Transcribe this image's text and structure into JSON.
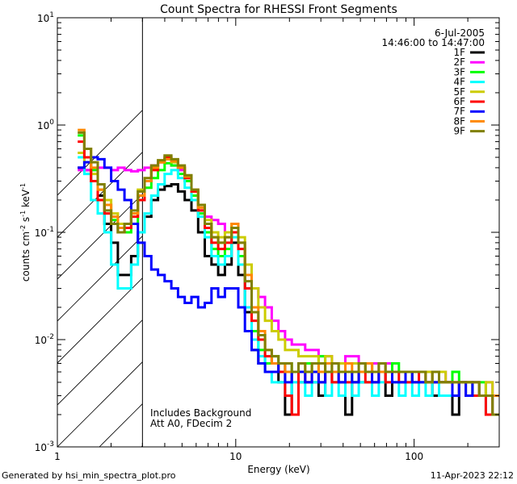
{
  "chart_data": {
    "type": "line",
    "title": "Count Spectra for RHESSI Front Segments",
    "xlabel": "Energy (keV)",
    "ylabel_parts": {
      "a": "counts cm",
      "b": "-2",
      "c": " s",
      "d": "-1",
      "e": " keV",
      "f": "-1"
    },
    "x_scale": "log",
    "y_scale": "log",
    "xlim": [
      1,
      300
    ],
    "ylim": [
      0.001,
      10
    ],
    "x_ticks": [
      {
        "v": 1,
        "label": "1"
      },
      {
        "v": 10,
        "label": "10"
      },
      {
        "v": 100,
        "label": "100"
      }
    ],
    "y_ticks": [
      {
        "v": 10,
        "base": "10",
        "exp": "1"
      },
      {
        "v": 1,
        "base": "10",
        "exp": "0"
      },
      {
        "v": 0.1,
        "base": "10",
        "exp": "-1"
      },
      {
        "v": 0.01,
        "base": "10",
        "exp": "-2"
      },
      {
        "v": 0.001,
        "base": "10",
        "exp": "-3"
      }
    ],
    "hatch_region": [
      1,
      3
    ],
    "legend_position": "top-right",
    "legend_header": [
      "6-Jul-2005",
      "14:46:00 to 14:47:00"
    ],
    "annotations": [
      "Includes Background",
      "Att A0, FDecim 2"
    ],
    "series": [
      {
        "name": "1F",
        "color": "#000000",
        "values": [
          0.4,
          0.38,
          0.3,
          0.22,
          0.12,
          0.08,
          0.04,
          0.04,
          0.06,
          0.1,
          0.14,
          0.2,
          0.25,
          0.27,
          0.28,
          0.24,
          0.2,
          0.16,
          0.1,
          0.06,
          0.05,
          0.04,
          0.05,
          0.08,
          0.04,
          0.018,
          0.008,
          0.006,
          0.005,
          0.005,
          0.004,
          0.002,
          0.005,
          0.004,
          0.004,
          0.004,
          0.003,
          0.005,
          0.004,
          0.004,
          0.002,
          0.004,
          0.004,
          0.004,
          0.004,
          0.005,
          0.003,
          0.004,
          0.004,
          0.005,
          0.004,
          0.004,
          0.004,
          0.003,
          0.004,
          0.004,
          0.002,
          0.004,
          0.004,
          0.003,
          0.003,
          0.003,
          0.003
        ]
      },
      {
        "name": "2F",
        "color": "#ff00ff",
        "values": [
          0.38,
          0.38,
          0.38,
          0.4,
          0.4,
          0.38,
          0.4,
          0.38,
          0.37,
          0.38,
          0.4,
          0.42,
          0.45,
          0.48,
          0.42,
          0.38,
          0.3,
          0.2,
          0.16,
          0.14,
          0.13,
          0.12,
          0.1,
          0.1,
          0.06,
          0.05,
          0.03,
          0.025,
          0.02,
          0.015,
          0.012,
          0.01,
          0.009,
          0.009,
          0.008,
          0.008,
          0.007,
          0.007,
          0.006,
          0.006,
          0.007,
          0.007,
          0.006,
          0.006,
          0.006,
          0.005,
          0.006,
          0.005,
          0.005,
          0.005,
          0.005,
          0.005,
          0.004,
          0.005,
          0.005,
          0.004,
          0.004,
          0.004,
          0.004,
          0.004,
          0.003,
          0.004,
          0.003
        ]
      },
      {
        "name": "3F",
        "color": "#00ff00",
        "values": [
          0.8,
          0.5,
          0.38,
          0.25,
          0.18,
          0.13,
          0.1,
          0.1,
          0.12,
          0.2,
          0.26,
          0.32,
          0.38,
          0.44,
          0.42,
          0.35,
          0.3,
          0.22,
          0.15,
          0.1,
          0.07,
          0.06,
          0.07,
          0.1,
          0.06,
          0.03,
          0.012,
          0.008,
          0.006,
          0.007,
          0.005,
          0.006,
          0.005,
          0.006,
          0.006,
          0.005,
          0.007,
          0.005,
          0.006,
          0.005,
          0.005,
          0.004,
          0.005,
          0.006,
          0.005,
          0.005,
          0.005,
          0.006,
          0.005,
          0.004,
          0.005,
          0.005,
          0.004,
          0.005,
          0.004,
          0.004,
          0.005,
          0.004,
          0.004,
          0.003,
          0.004,
          0.003,
          0.003
        ]
      },
      {
        "name": "4F",
        "color": "#00ffff",
        "values": [
          0.5,
          0.35,
          0.2,
          0.15,
          0.1,
          0.05,
          0.03,
          0.03,
          0.05,
          0.1,
          0.15,
          0.22,
          0.28,
          0.35,
          0.38,
          0.32,
          0.26,
          0.2,
          0.14,
          0.09,
          0.06,
          0.05,
          0.06,
          0.09,
          0.05,
          0.02,
          0.01,
          0.007,
          0.005,
          0.004,
          0.004,
          0.003,
          0.004,
          0.004,
          0.003,
          0.004,
          0.004,
          0.003,
          0.004,
          0.003,
          0.004,
          0.003,
          0.004,
          0.004,
          0.003,
          0.004,
          0.004,
          0.004,
          0.003,
          0.004,
          0.003,
          0.004,
          0.003,
          0.004,
          0.003,
          0.003,
          0.003,
          0.004,
          0.003,
          0.003,
          0.003,
          0.002,
          0.003
        ]
      },
      {
        "name": "5F",
        "color": "#cccc00",
        "values": [
          0.55,
          0.45,
          0.35,
          0.25,
          0.2,
          0.15,
          0.12,
          0.12,
          0.15,
          0.25,
          0.3,
          0.4,
          0.45,
          0.48,
          0.45,
          0.4,
          0.32,
          0.24,
          0.18,
          0.13,
          0.1,
          0.09,
          0.1,
          0.12,
          0.09,
          0.05,
          0.03,
          0.02,
          0.015,
          0.012,
          0.01,
          0.008,
          0.008,
          0.007,
          0.007,
          0.007,
          0.006,
          0.007,
          0.006,
          0.006,
          0.006,
          0.006,
          0.006,
          0.006,
          0.005,
          0.006,
          0.005,
          0.005,
          0.005,
          0.005,
          0.005,
          0.005,
          0.005,
          0.004,
          0.005,
          0.004,
          0.004,
          0.004,
          0.004,
          0.004,
          0.003,
          0.004,
          0.003
        ]
      },
      {
        "name": "6F",
        "color": "#ff0000",
        "values": [
          0.7,
          0.5,
          0.3,
          0.2,
          0.15,
          0.12,
          0.1,
          0.11,
          0.14,
          0.2,
          0.3,
          0.38,
          0.45,
          0.5,
          0.47,
          0.4,
          0.32,
          0.24,
          0.16,
          0.11,
          0.08,
          0.07,
          0.08,
          0.1,
          0.07,
          0.03,
          0.015,
          0.01,
          0.007,
          0.006,
          0.005,
          0.003,
          0.002,
          0.005,
          0.004,
          0.005,
          0.004,
          0.005,
          0.004,
          0.005,
          0.004,
          0.004,
          0.005,
          0.004,
          0.004,
          0.005,
          0.004,
          0.005,
          0.004,
          0.004,
          0.004,
          0.005,
          0.004,
          0.004,
          0.004,
          0.004,
          0.003,
          0.004,
          0.003,
          0.003,
          0.003,
          0.002,
          0.003
        ]
      },
      {
        "name": "7F",
        "color": "#0000ff",
        "values": [
          0.4,
          0.45,
          0.5,
          0.48,
          0.4,
          0.3,
          0.25,
          0.2,
          0.12,
          0.08,
          0.06,
          0.045,
          0.04,
          0.035,
          0.03,
          0.025,
          0.022,
          0.025,
          0.02,
          0.022,
          0.03,
          0.025,
          0.03,
          0.03,
          0.02,
          0.012,
          0.008,
          0.006,
          0.005,
          0.005,
          0.006,
          0.004,
          0.005,
          0.005,
          0.004,
          0.005,
          0.004,
          0.005,
          0.005,
          0.004,
          0.005,
          0.004,
          0.005,
          0.005,
          0.004,
          0.005,
          0.005,
          0.004,
          0.004,
          0.005,
          0.004,
          0.004,
          0.004,
          0.004,
          0.004,
          0.004,
          0.003,
          0.004,
          0.003,
          0.004,
          0.003,
          0.003,
          0.003
        ]
      },
      {
        "name": "8F",
        "color": "#ff8800",
        "values": [
          0.9,
          0.6,
          0.4,
          0.25,
          0.18,
          0.14,
          0.11,
          0.12,
          0.15,
          0.22,
          0.3,
          0.4,
          0.45,
          0.48,
          0.46,
          0.4,
          0.33,
          0.25,
          0.17,
          0.12,
          0.09,
          0.08,
          0.09,
          0.12,
          0.08,
          0.04,
          0.02,
          0.012,
          0.008,
          0.006,
          0.006,
          0.005,
          0.005,
          0.006,
          0.005,
          0.006,
          0.005,
          0.006,
          0.005,
          0.005,
          0.006,
          0.005,
          0.005,
          0.006,
          0.005,
          0.005,
          0.005,
          0.005,
          0.005,
          0.005,
          0.005,
          0.005,
          0.004,
          0.005,
          0.004,
          0.004,
          0.004,
          0.004,
          0.004,
          0.004,
          0.003,
          0.003,
          0.003
        ]
      },
      {
        "name": "9F",
        "color": "#808000",
        "values": [
          0.85,
          0.6,
          0.45,
          0.28,
          0.16,
          0.12,
          0.1,
          0.12,
          0.16,
          0.24,
          0.32,
          0.42,
          0.47,
          0.52,
          0.48,
          0.42,
          0.34,
          0.25,
          0.18,
          0.12,
          0.09,
          0.08,
          0.09,
          0.11,
          0.08,
          0.035,
          0.018,
          0.011,
          0.008,
          0.007,
          0.006,
          0.006,
          0.005,
          0.006,
          0.005,
          0.006,
          0.006,
          0.005,
          0.006,
          0.005,
          0.005,
          0.005,
          0.006,
          0.005,
          0.005,
          0.006,
          0.005,
          0.005,
          0.005,
          0.005,
          0.005,
          0.005,
          0.004,
          0.005,
          0.004,
          0.004,
          0.004,
          0.004,
          0.004,
          0.004,
          0.003,
          0.003,
          0.002
        ]
      }
    ]
  },
  "footer": {
    "generated": "Generated by hsi_min_spectra_plot.pro",
    "date": "11-Apr-2023 22:12"
  }
}
